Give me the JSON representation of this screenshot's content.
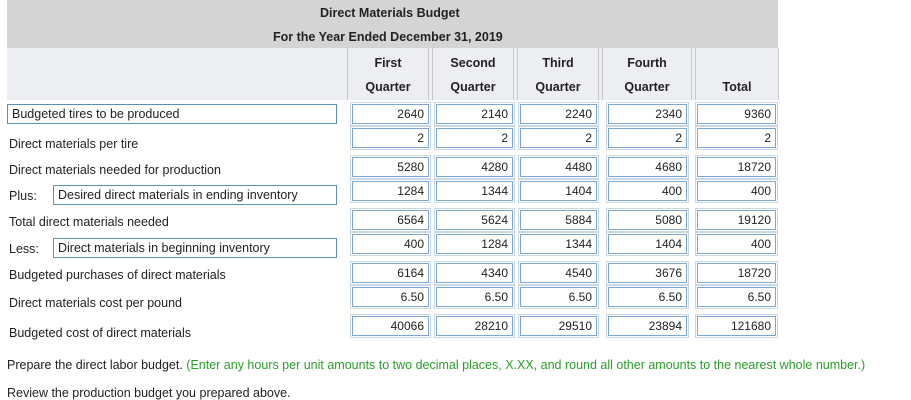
{
  "header": {
    "title": "Direct Materials Budget",
    "subtitle": "For the Year Ended December 31, 2019"
  },
  "columns": [
    {
      "line1": "First",
      "line2": "Quarter"
    },
    {
      "line1": "Second",
      "line2": "Quarter"
    },
    {
      "line1": "Third",
      "line2": "Quarter"
    },
    {
      "line1": "Fourth",
      "line2": "Quarter"
    },
    {
      "line1": "",
      "line2": "Total"
    }
  ],
  "rows": [
    {
      "label": "Budgeted tires to be produced",
      "values": [
        "2640",
        "2140",
        "2240",
        "2340",
        "9360"
      ]
    },
    {
      "label": "Direct materials per tire",
      "values": [
        "2",
        "2",
        "2",
        "2",
        "2"
      ]
    },
    {
      "label": "Direct materials needed for production",
      "values": [
        "5280",
        "4280",
        "4480",
        "4680",
        "18720"
      ]
    },
    {
      "prefix": "Plus:",
      "label": "Desired direct materials in ending inventory",
      "values": [
        "1284",
        "1344",
        "1404",
        "400",
        "400"
      ]
    },
    {
      "label": "Total direct materials needed",
      "values": [
        "6564",
        "5624",
        "5884",
        "5080",
        "19120"
      ]
    },
    {
      "prefix": "Less:",
      "label": "Direct materials in beginning inventory",
      "values": [
        "400",
        "1284",
        "1344",
        "1404",
        "400"
      ]
    },
    {
      "label": "Budgeted purchases of direct materials",
      "values": [
        "6164",
        "4340",
        "4540",
        "3676",
        "18720"
      ]
    },
    {
      "label": "Direct materials cost per pound",
      "values": [
        "6.50",
        "6.50",
        "6.50",
        "6.50",
        "6.50"
      ]
    },
    {
      "label": "Budgeted cost of direct materials",
      "values": [
        "40066",
        "28210",
        "29510",
        "23894",
        "121680"
      ]
    }
  ],
  "footer": {
    "instruction": "Prepare the direct labor budget.",
    "hint": "(Enter any hours per unit amounts to two decimal places, X.XX, and round all other amounts to the nearest whole number.)",
    "review": "Review the production budget you prepared above."
  }
}
